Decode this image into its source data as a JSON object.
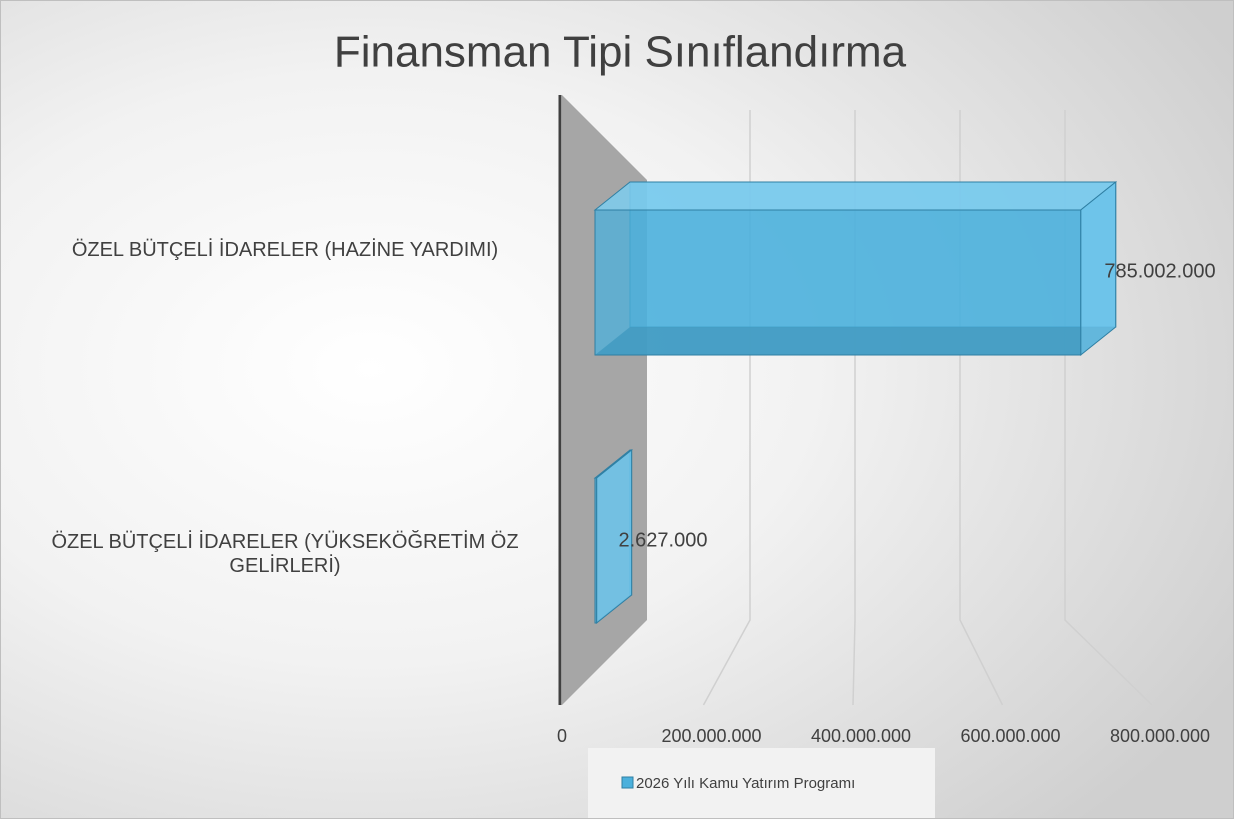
{
  "chart_data": {
    "type": "bar",
    "orientation": "horizontal",
    "title": "Finansman Tipi Sınıflandırma",
    "categories": [
      "ÖZEL BÜTÇELİ İDARELER (HAZİNE YARDIMI)",
      "ÖZEL BÜTÇELİ İDARELER (YÜKSEKÖĞRETİM ÖZ GELİRLERİ)"
    ],
    "series": [
      {
        "name": "2026 Yılı Kamu Yatırım Programı",
        "color": "#4bb0dc",
        "values": [
          785002000,
          2627000
        ],
        "value_labels": [
          "785.002.000",
          "2.627.000"
        ]
      }
    ],
    "xlim": [
      0,
      800000000
    ],
    "xticks": [
      0,
      {
        "value": 200000000,
        "label": "200.000.000"
      },
      {
        "value": 400000000,
        "label": "400.000.000"
      },
      {
        "value": 600000000,
        "label": "600.000.000"
      },
      {
        "value": 800000000,
        "label": "800.000.000"
      }
    ],
    "grid": true,
    "legend": "bottom"
  }
}
